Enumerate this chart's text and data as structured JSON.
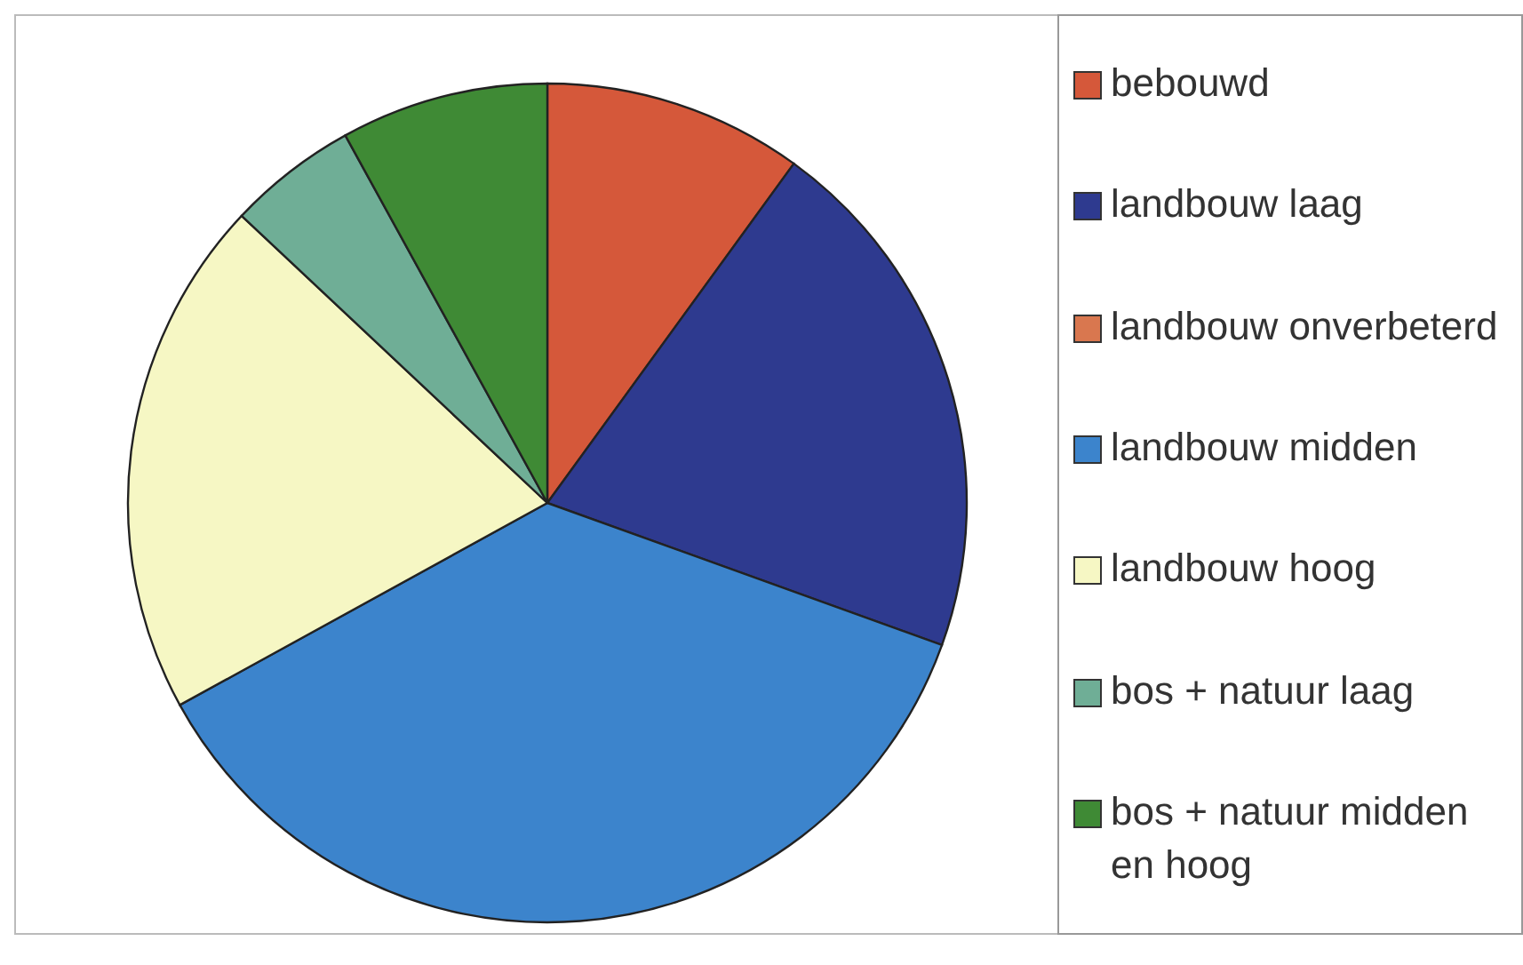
{
  "chart_data": {
    "type": "pie",
    "categories": [
      "bebouwd",
      "landbouw laag",
      "landbouw onverbeterd",
      "landbouw midden",
      "landbouw hoog",
      "bos + natuur laag",
      "bos + natuur midden en hoog"
    ],
    "values": [
      10,
      20.5,
      0,
      36.5,
      20,
      5,
      8
    ],
    "colors": [
      "#d5583a",
      "#2e3a8f",
      "#d9774f",
      "#3c84cc",
      "#f6f7c4",
      "#6fae96",
      "#3f8a35"
    ],
    "legend": "right"
  }
}
